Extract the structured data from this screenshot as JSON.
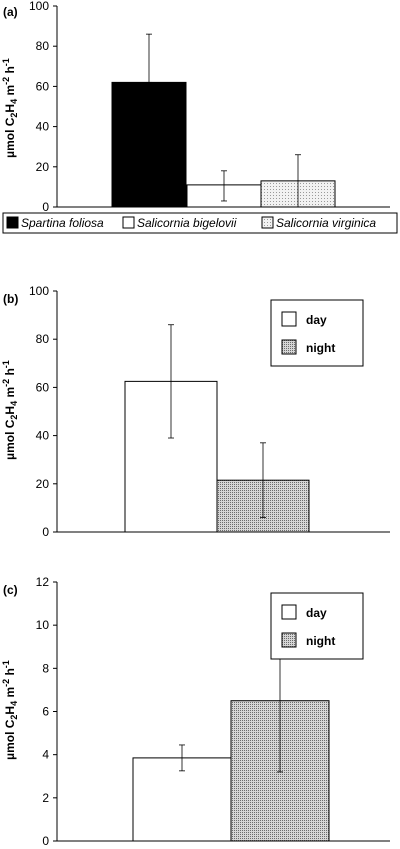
{
  "chart_data": [
    {
      "panel": "(a)",
      "type": "bar",
      "ylabel": "µmol C2H4 m-2 h-1",
      "ylim": [
        0,
        100
      ],
      "yticks": [
        0,
        20,
        40,
        60,
        80,
        100
      ],
      "legend": "below",
      "categories": [
        "Spartina foliosa",
        "Salicornia bigelovii",
        "Salicornia virginica"
      ],
      "values": [
        62,
        11,
        13
      ],
      "errors_upper": [
        86,
        18,
        26
      ],
      "errors_lower": [
        62,
        3,
        0
      ],
      "fills": [
        "#000000",
        "#ffffff",
        "dotted-light"
      ]
    },
    {
      "panel": "(b)",
      "type": "bar",
      "ylabel": "µmol C2H4 m-2 h-1",
      "ylim": [
        0,
        100
      ],
      "yticks": [
        0,
        20,
        40,
        60,
        80,
        100
      ],
      "legend": "top-right",
      "categories": [
        "day",
        "night"
      ],
      "values": [
        62.5,
        21.5
      ],
      "errors_upper": [
        86,
        37
      ],
      "errors_lower": [
        39,
        6
      ],
      "fills": [
        "#ffffff",
        "dotted-dark"
      ]
    },
    {
      "panel": "(c)",
      "type": "bar",
      "ylabel": "µmol C2H4 m-2 h-1",
      "ylim": [
        0,
        12
      ],
      "yticks": [
        0,
        2,
        4,
        6,
        8,
        10,
        12
      ],
      "legend": "top-right",
      "categories": [
        "day",
        "night"
      ],
      "values": [
        3.85,
        6.5
      ],
      "errors_upper": [
        4.45,
        9.8
      ],
      "errors_lower": [
        3.25,
        3.2
      ],
      "fills": [
        "#ffffff",
        "dotted-dark"
      ]
    }
  ]
}
